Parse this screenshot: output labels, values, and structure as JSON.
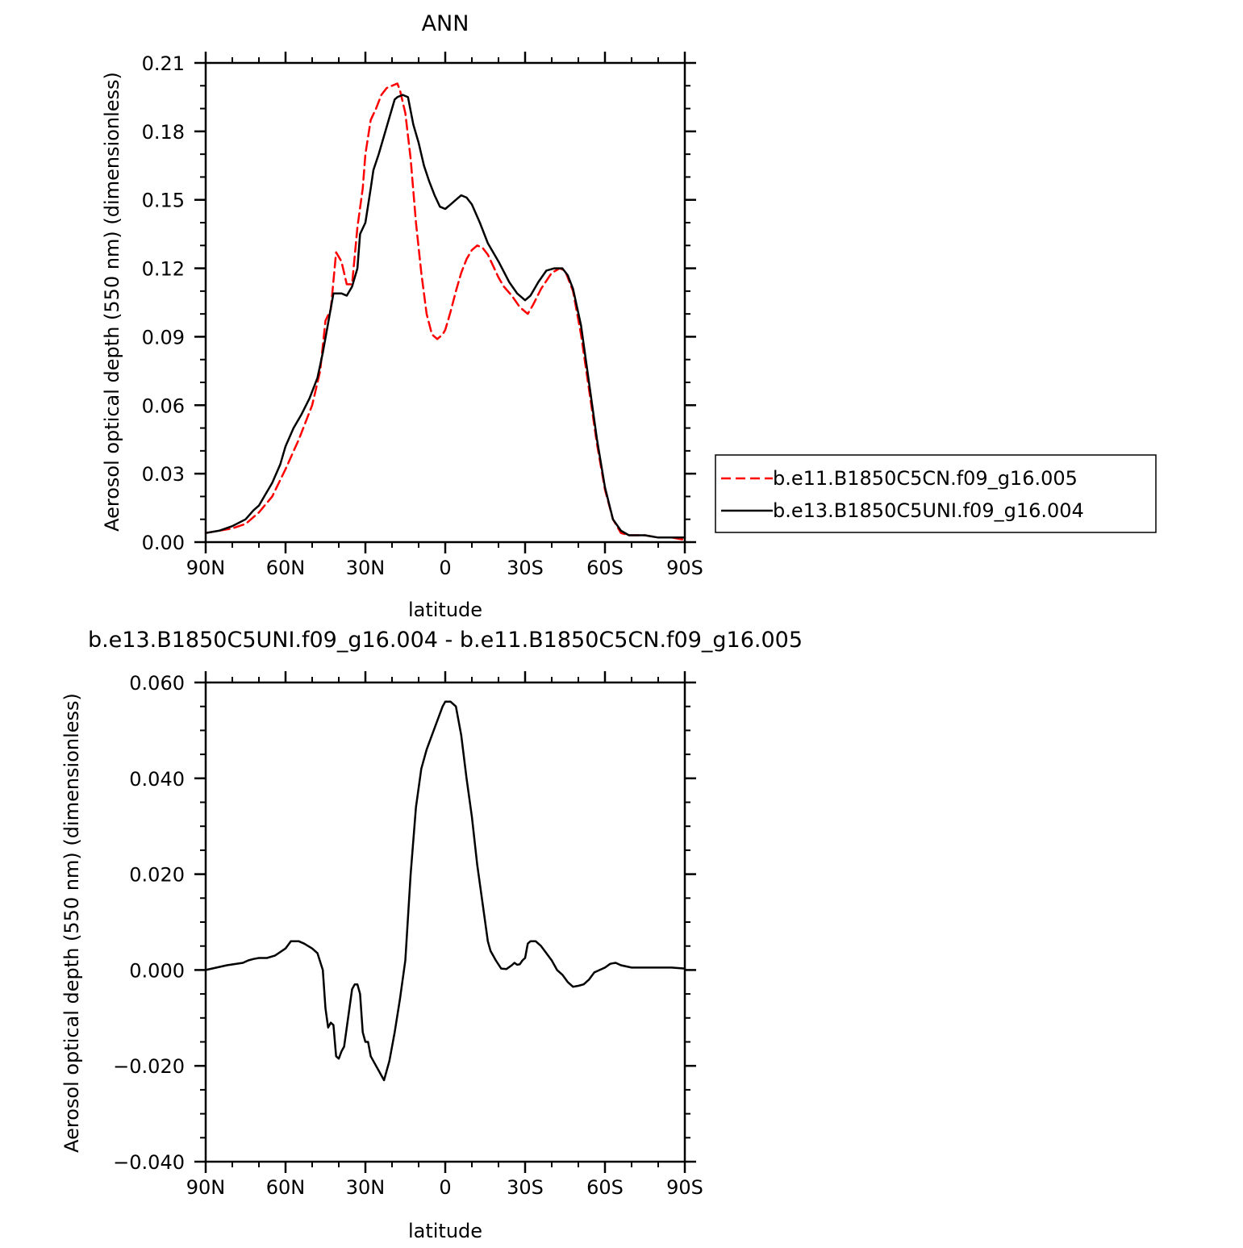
{
  "chart_data": [
    {
      "type": "line",
      "title": "ANN",
      "xlabel": "latitude",
      "ylabel": "Aerosol optical depth (550 nm) (dimensionless)",
      "xlim": [
        90,
        -90
      ],
      "ylim": [
        0,
        0.21
      ],
      "x_ticks": [
        {
          "value": 90,
          "label": "90N"
        },
        {
          "value": 60,
          "label": "60N"
        },
        {
          "value": 30,
          "label": "30N"
        },
        {
          "value": 0,
          "label": "0"
        },
        {
          "value": -30,
          "label": "30S"
        },
        {
          "value": -60,
          "label": "60S"
        },
        {
          "value": -90,
          "label": "90S"
        }
      ],
      "y_ticks": [
        {
          "value": 0,
          "label": "0.00"
        },
        {
          "value": 0.03,
          "label": "0.03"
        },
        {
          "value": 0.06,
          "label": "0.06"
        },
        {
          "value": 0.09,
          "label": "0.09"
        },
        {
          "value": 0.12,
          "label": "0.12"
        },
        {
          "value": 0.15,
          "label": "0.15"
        },
        {
          "value": 0.18,
          "label": "0.18"
        },
        {
          "value": 0.21,
          "label": "0.21"
        }
      ],
      "legend_position": "right",
      "series": [
        {
          "name": "b.e11.B1850C5CN.f09_g16.005",
          "color": "#ff0000",
          "dash": "dashed",
          "x": [
            90,
            85,
            80,
            75,
            70,
            65,
            60,
            55,
            50,
            47,
            45,
            43,
            41,
            39,
            37,
            35,
            33,
            31,
            30,
            28,
            26,
            24,
            22,
            20,
            18,
            17,
            15,
            13,
            11,
            9,
            7,
            5,
            3,
            1,
            0,
            -2,
            -4,
            -6,
            -8,
            -10,
            -12,
            -14,
            -16,
            -18,
            -20,
            -22,
            -25,
            -28,
            -31,
            -33,
            -36,
            -40,
            -43,
            -45,
            -48,
            -51,
            -54,
            -57,
            -60,
            -63,
            -66,
            -69,
            -72,
            -75,
            -80,
            -85,
            -90
          ],
          "y": [
            0.004,
            0.005,
            0.006,
            0.008,
            0.013,
            0.02,
            0.032,
            0.045,
            0.06,
            0.075,
            0.097,
            0.102,
            0.127,
            0.123,
            0.113,
            0.113,
            0.138,
            0.155,
            0.17,
            0.185,
            0.19,
            0.196,
            0.199,
            0.2,
            0.201,
            0.198,
            0.188,
            0.168,
            0.14,
            0.118,
            0.1,
            0.091,
            0.089,
            0.091,
            0.093,
            0.101,
            0.11,
            0.118,
            0.124,
            0.128,
            0.13,
            0.129,
            0.126,
            0.121,
            0.116,
            0.112,
            0.108,
            0.103,
            0.1,
            0.104,
            0.111,
            0.118,
            0.12,
            0.119,
            0.11,
            0.091,
            0.067,
            0.043,
            0.023,
            0.01,
            0.004,
            0.003,
            0.003,
            0.003,
            0.002,
            0.002,
            0.001
          ]
        },
        {
          "name": "b.e13.B1850C5UNI.f09_g16.004",
          "color": "#000000",
          "dash": "solid",
          "x": [
            90,
            85,
            80,
            75,
            72,
            70,
            68,
            65,
            62,
            60,
            57,
            54,
            51,
            48,
            46,
            44,
            42,
            41,
            39,
            37,
            35,
            33,
            32,
            30,
            28,
            27,
            25,
            23,
            21,
            19,
            18,
            16,
            14,
            12,
            10,
            8,
            6,
            4,
            2,
            0,
            -2,
            -4,
            -6,
            -8,
            -10,
            -13,
            -16,
            -20,
            -24,
            -27,
            -30,
            -32,
            -35,
            -38,
            -41,
            -44,
            -46,
            -48,
            -51,
            -54,
            -57,
            -60,
            -63,
            -66,
            -69,
            -72,
            -75,
            -80,
            -85,
            -90
          ],
          "y": [
            0.004,
            0.005,
            0.007,
            0.01,
            0.014,
            0.016,
            0.02,
            0.026,
            0.034,
            0.042,
            0.05,
            0.056,
            0.063,
            0.072,
            0.083,
            0.096,
            0.109,
            0.109,
            0.109,
            0.108,
            0.112,
            0.12,
            0.135,
            0.14,
            0.155,
            0.163,
            0.17,
            0.178,
            0.186,
            0.194,
            0.195,
            0.196,
            0.195,
            0.183,
            0.175,
            0.165,
            0.158,
            0.152,
            0.147,
            0.146,
            0.148,
            0.15,
            0.152,
            0.151,
            0.148,
            0.14,
            0.131,
            0.123,
            0.114,
            0.109,
            0.106,
            0.108,
            0.114,
            0.119,
            0.12,
            0.12,
            0.117,
            0.111,
            0.095,
            0.07,
            0.045,
            0.024,
            0.01,
            0.005,
            0.003,
            0.003,
            0.003,
            0.002,
            0.002,
            0.002
          ]
        }
      ]
    },
    {
      "type": "line",
      "title": "b.e13.B1850C5UNI.f09_g16.004 - b.e11.B1850C5CN.f09_g16.005",
      "xlabel": "latitude",
      "ylabel": "Aerosol optical depth (550 nm) (dimensionless)",
      "xlim": [
        90,
        -90
      ],
      "ylim": [
        -0.04,
        0.06
      ],
      "x_ticks": [
        {
          "value": 90,
          "label": "90N"
        },
        {
          "value": 60,
          "label": "60N"
        },
        {
          "value": 30,
          "label": "30N"
        },
        {
          "value": 0,
          "label": "0"
        },
        {
          "value": -30,
          "label": "30S"
        },
        {
          "value": -60,
          "label": "60S"
        },
        {
          "value": -90,
          "label": "90S"
        }
      ],
      "y_ticks": [
        {
          "value": -0.04,
          "label": "−0.040"
        },
        {
          "value": -0.02,
          "label": "−0.020"
        },
        {
          "value": 0,
          "label": "0.000"
        },
        {
          "value": 0.02,
          "label": "0.020"
        },
        {
          "value": 0.04,
          "label": "0.040"
        },
        {
          "value": 0.06,
          "label": "0.060"
        }
      ],
      "series": [
        {
          "color": "#000000",
          "dash": "solid",
          "x": [
            90,
            82,
            76,
            74,
            72,
            70,
            67,
            64,
            60,
            58,
            55,
            53,
            50,
            48,
            46,
            45,
            44,
            43,
            42,
            41,
            40,
            39,
            38,
            37,
            36,
            35,
            34,
            33,
            32,
            31,
            30,
            29,
            28,
            26,
            25,
            24,
            23,
            21,
            19,
            17,
            15,
            13,
            11,
            9,
            7,
            5,
            3,
            1,
            0,
            -2,
            -4,
            -6,
            -8,
            -10,
            -12,
            -14,
            -16,
            -17,
            -19,
            -21,
            -23,
            -25,
            -26,
            -27,
            -28,
            -29,
            -30,
            -31,
            -32,
            -34,
            -36,
            -38,
            -40,
            -42,
            -44,
            -46,
            -48,
            -50,
            -52,
            -54,
            -56,
            -58,
            -60,
            -62,
            -64,
            -66,
            -70,
            -75,
            -80,
            -85,
            -90
          ],
          "y": [
            0,
            0.001,
            0.0015,
            0.002,
            0.0023,
            0.0025,
            0.0025,
            0.003,
            0.0045,
            0.006,
            0.006,
            0.0055,
            0.0045,
            0.0035,
            0.0,
            -0.008,
            -0.012,
            -0.011,
            -0.0115,
            -0.018,
            -0.0185,
            -0.017,
            -0.016,
            -0.012,
            -0.008,
            -0.004,
            -0.003,
            -0.003,
            -0.005,
            -0.013,
            -0.015,
            -0.015,
            -0.018,
            -0.02,
            -0.021,
            -0.022,
            -0.023,
            -0.019,
            -0.013,
            -0.006,
            0.002,
            0.02,
            0.034,
            0.042,
            0.046,
            0.049,
            0.052,
            0.055,
            0.056,
            0.056,
            0.055,
            0.049,
            0.04,
            0.032,
            0.022,
            0.014,
            0.006,
            0.004,
            0.002,
            0.0003,
            0.0002,
            0.001,
            0.0015,
            0.0011,
            0.0012,
            0.002,
            0.0025,
            0.0055,
            0.006,
            0.006,
            0.005,
            0.0035,
            0.002,
            0.0,
            -0.001,
            -0.0025,
            -0.0035,
            -0.0033,
            -0.003,
            -0.002,
            -0.0005,
            0.0,
            0.0005,
            0.0013,
            0.0015,
            0.001,
            0.0005,
            0.0005,
            0.0005,
            0.0005,
            0.0003
          ]
        }
      ]
    }
  ]
}
